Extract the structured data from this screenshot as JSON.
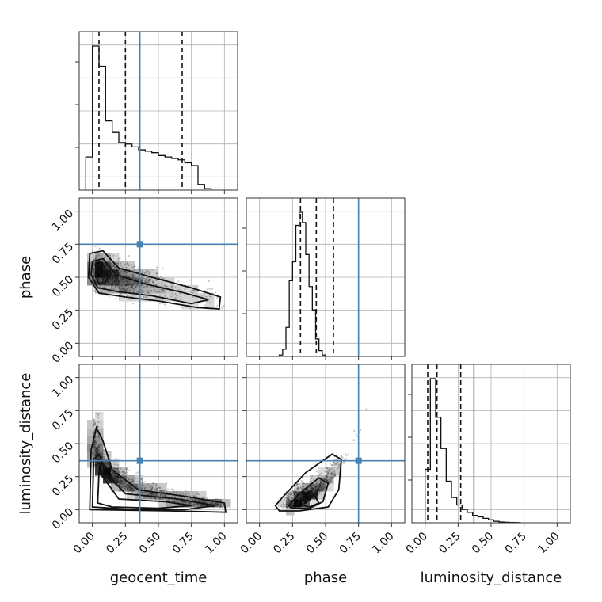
{
  "chart_data": {
    "type": "corner",
    "parameters": [
      {
        "key": "geocent_time",
        "label": "geocent_time"
      },
      {
        "key": "phase",
        "label": "phase"
      },
      {
        "key": "luminosity_distance",
        "label": "luminosity_distance"
      }
    ],
    "axis_range": [
      -0.1,
      1.1
    ],
    "tick_labels": [
      "0.00",
      "0.25",
      "0.50",
      "0.75",
      "1.00"
    ],
    "grid": true,
    "truths": {
      "geocent_time": 0.36,
      "phase": 0.75,
      "luminosity_distance": 0.37
    },
    "truth_color": "#4682b4",
    "quantiles": {
      "geocent_time": [
        0.05,
        0.25,
        0.68
      ],
      "phase": [
        0.31,
        0.43,
        0.56
      ],
      "luminosity_distance": [
        0.02,
        0.09,
        0.27
      ]
    },
    "histograms": {
      "geocent_time": {
        "bins_start": -0.05,
        "bin_width": 0.05,
        "counts": [
          0.23,
          1.0,
          0.86,
          0.48,
          0.4,
          0.33,
          0.32,
          0.3,
          0.28,
          0.27,
          0.26,
          0.24,
          0.23,
          0.22,
          0.21,
          0.19,
          0.17,
          0.04,
          0.01
        ]
      },
      "phase": {
        "bins_start": 0.15,
        "bin_width": 0.025,
        "counts": [
          0.01,
          0.05,
          0.2,
          0.52,
          0.65,
          0.9,
          0.99,
          0.92,
          0.7,
          0.48,
          0.32,
          0.12,
          0.04,
          0.01
        ]
      },
      "luminosity_distance": {
        "bins_start": 0.0,
        "bin_width": 0.04,
        "counts": [
          0.36,
          0.97,
          0.71,
          0.5,
          0.28,
          0.17,
          0.12,
          0.09,
          0.07,
          0.05,
          0.04,
          0.03,
          0.02,
          0.01,
          0.005,
          0.003,
          0.002,
          0.001
        ]
      }
    },
    "panels_2d": [
      {
        "x": "geocent_time",
        "y": "phase",
        "density_peak": [
          0.05,
          0.52
        ],
        "trend": "decreasing from ~0.55 at 0.0 to ~0.30 at 1.0"
      },
      {
        "x": "geocent_time",
        "y": "luminosity_distance",
        "density_peak": [
          0.1,
          0.12
        ],
        "trend": "decreasing from ~0.6 at 0.0 to ~0.02 at 1.0"
      },
      {
        "x": "phase",
        "y": "luminosity_distance",
        "density_peak": [
          0.35,
          0.06
        ],
        "trend": "increasing from ~0.02 at 0.15 to ~0.8 at 0.75"
      }
    ]
  }
}
